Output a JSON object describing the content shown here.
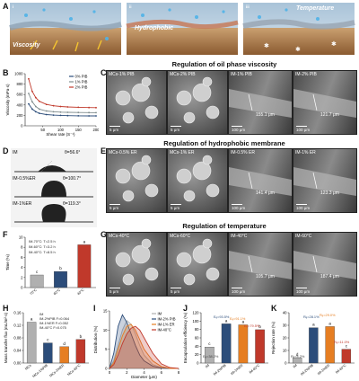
{
  "panel_letters": [
    "A",
    "B",
    "C",
    "D",
    "E",
    "F",
    "G",
    "H",
    "I",
    "J",
    "K"
  ],
  "panel_a": {
    "sub_labels": [
      "i",
      "ii",
      "iii"
    ],
    "callouts": {
      "viscosity": "Viscosity",
      "hydrophobic": "Hydrophobic",
      "temperature": "Temperature"
    }
  },
  "section_titles": {
    "oil": "Regulation of oil phase viscosity",
    "membrane": "Regulation of hydrophobic membrane",
    "temp": "Regulation of temperature"
  },
  "panel_c": {
    "images": [
      {
        "label": "MCs-1% PIB",
        "scale": "5 μm"
      },
      {
        "label": "MCs-2% PIB",
        "scale": "5 μm"
      },
      {
        "label": "IM-1% PIB",
        "scale": "100 μm",
        "measure": "155.1 μm"
      },
      {
        "label": "IM-2% PIB",
        "scale": "100 μm",
        "measure": "121.7 μm"
      }
    ]
  },
  "panel_d": {
    "rows": [
      {
        "label": "IM",
        "angle": "θ=56.6°"
      },
      {
        "label": "IM-0.5%ER",
        "angle": "θ=100.7°"
      },
      {
        "label": "IM-1%ER",
        "angle": "θ=119.3°"
      }
    ]
  },
  "panel_e": {
    "images": [
      {
        "label": "MCs-0.5% ER",
        "scale": "5 μm"
      },
      {
        "label": "MCs-1% ER",
        "scale": "5 μm"
      },
      {
        "label": "IM-0.5% ER",
        "scale": "100 μm",
        "measure": "141.4 μm"
      },
      {
        "label": "IM-1% ER",
        "scale": "100 μm",
        "measure": "123.3 μm"
      }
    ]
  },
  "panel_g": {
    "images": [
      {
        "label": "MCs-40°C",
        "scale": "5 μm"
      },
      {
        "label": "MCs-60°C",
        "scale": "5 μm"
      },
      {
        "label": "IM-40°C",
        "scale": "100 μm",
        "measure": "105.7 μm"
      },
      {
        "label": "IM-60°C",
        "scale": "100 μm",
        "measure": "187.4 μm"
      }
    ]
  },
  "colors": {
    "red": "#c0392b",
    "blue": "#2c4d7a",
    "orange": "#e67e22",
    "gray": "#b0b0b0",
    "salmon": "#f1a08e"
  },
  "chart_data": [
    {
      "id": "B",
      "type": "line",
      "ylabel": "Viscosity (mPa·s)",
      "xlabel": "Shear rate (S⁻¹)",
      "xlim": [
        0,
        200
      ],
      "ylim": [
        0,
        1000
      ],
      "xticks": [
        50,
        100,
        150,
        200
      ],
      "yticks": [
        0,
        200,
        400,
        600,
        800,
        1000
      ],
      "legend_position": "top-right",
      "series": [
        {
          "name": "0% PIB",
          "color": "#2c4d7a",
          "x": [
            10,
            20,
            30,
            40,
            60,
            80,
            100,
            120,
            150,
            180,
            200
          ],
          "y": [
            420,
            320,
            270,
            240,
            215,
            205,
            200,
            195,
            192,
            190,
            190
          ]
        },
        {
          "name": "1% PIB",
          "color": "#7f8c8d",
          "x": [
            10,
            20,
            30,
            40,
            60,
            80,
            100,
            120,
            150,
            180,
            200
          ],
          "y": [
            620,
            460,
            370,
            320,
            285,
            270,
            262,
            258,
            255,
            253,
            252
          ]
        },
        {
          "name": "2% PIB",
          "color": "#c0392b",
          "x": [
            10,
            20,
            30,
            40,
            60,
            80,
            100,
            120,
            150,
            180,
            200
          ],
          "y": [
            900,
            660,
            540,
            470,
            410,
            385,
            370,
            362,
            355,
            350,
            348
          ]
        }
      ]
    },
    {
      "id": "F",
      "type": "bar",
      "ylabel": "Time (%)",
      "categories": [
        "70°C",
        "60°C",
        "40°C"
      ],
      "values": [
        2.5,
        3.2,
        8.5
      ],
      "letters": [
        "c",
        "b",
        "a"
      ],
      "ylim": [
        0,
        10
      ],
      "yticks": [
        0,
        2,
        4,
        6,
        8,
        10
      ],
      "annotations": [
        "IM-70°C: T=2.5 h",
        "IM-60°C: T=3.2 h",
        "IM-40°C: T=8.5 h"
      ],
      "colors": [
        "#b0b0b0",
        "#2c4d7a",
        "#c0392b"
      ]
    },
    {
      "id": "H",
      "type": "bar",
      "ylabel": "Mass transfer flux (mL/m²·s)",
      "categories": [
        "MCs",
        "MCs-1%PIB",
        "MCs-1%ER",
        "MCs-40°C"
      ],
      "values": [
        0.13,
        0.064,
        0.052,
        0.075
      ],
      "letters": [
        "a",
        "c",
        "d",
        "b"
      ],
      "ylim": [
        0,
        0.16
      ],
      "yticks": [
        0,
        0.04,
        0.08,
        0.12,
        0.16
      ],
      "annotations": [
        "IM",
        "IM-2%PIB F=0.064",
        "IM-1%ER F=0.052",
        "IM-40°C F=0.075"
      ],
      "colors": [
        "#b0b0b0",
        "#2c4d7a",
        "#e67e22",
        "#c0392b"
      ]
    },
    {
      "id": "I",
      "type": "area",
      "ylabel": "Distribution (%)",
      "xlabel": "Diameter (μm)",
      "xlim": [
        0,
        8
      ],
      "xticks": [
        0,
        2,
        4,
        6,
        8
      ],
      "ylim": [
        0,
        15
      ],
      "yticks": [
        0,
        5,
        10,
        15
      ],
      "legend_position": "top-right",
      "series": [
        {
          "name": "IM",
          "color": "#b0b0b0",
          "x": [
            0,
            0.5,
            1,
            1.5,
            2,
            2.5,
            3,
            3.5,
            4,
            5,
            6,
            7,
            8
          ],
          "y": [
            0,
            2,
            6,
            10,
            12.5,
            11.5,
            9,
            6,
            3.5,
            1,
            0.2,
            0,
            0
          ]
        },
        {
          "name": "IM-2% PIB",
          "color": "#2c4d7a",
          "x": [
            0,
            0.5,
            1,
            1.5,
            2,
            2.5,
            3,
            3.5,
            4,
            5,
            6,
            7,
            8
          ],
          "y": [
            0,
            4,
            11,
            14,
            12,
            9,
            6,
            3.5,
            2,
            0.6,
            0.1,
            0,
            0
          ]
        },
        {
          "name": "IM-1% ER",
          "color": "#e67e22",
          "x": [
            0,
            0.5,
            1,
            1.5,
            2,
            2.5,
            3,
            3.5,
            4,
            5,
            6,
            7,
            8
          ],
          "y": [
            0,
            1.5,
            5,
            8.5,
            11,
            11.5,
            10,
            7.5,
            5,
            2,
            0.5,
            0,
            0
          ]
        },
        {
          "name": "IM-40°C",
          "color": "#c0392b",
          "x": [
            0,
            0.5,
            1,
            1.5,
            2,
            2.5,
            3,
            3.5,
            4,
            5,
            6,
            7,
            8
          ],
          "y": [
            0,
            1,
            3.5,
            6.5,
            9,
            10.5,
            11,
            10,
            8,
            4,
            1.2,
            0.2,
            0
          ]
        }
      ]
    },
    {
      "id": "J",
      "type": "bar",
      "ylabel": "Encapsulation efficiency (%)",
      "categories": [
        "IM",
        "IM-2%PIB",
        "IM-1%ER",
        "IM-40°C"
      ],
      "values": [
        38.2,
        93.5,
        91.1,
        79.5
      ],
      "letters": [
        "c",
        "a",
        "a",
        "b"
      ],
      "ylim": [
        0,
        120
      ],
      "yticks": [
        0,
        20,
        40,
        60,
        80,
        100,
        120
      ],
      "annotations": [
        "Eₑ=38.2%",
        "Eₑ=93.5%",
        "Eₑ=91.1%",
        "Eₑ=79.5%"
      ],
      "colors": [
        "#b0b0b0",
        "#2c4d7a",
        "#e67e22",
        "#c0392b"
      ]
    },
    {
      "id": "K",
      "type": "bar",
      "ylabel": "Rejection rate (%)",
      "categories": [
        "IM",
        "IM-2%PIB",
        "IM-1%ER",
        "IM-40°C"
      ],
      "values": [
        4.2,
        28.1,
        29.0,
        11.0
      ],
      "letters": [
        "d",
        "a",
        "a",
        "c"
      ],
      "ylim": [
        0,
        40
      ],
      "yticks": [
        0,
        10,
        20,
        30,
        40
      ],
      "annotations": [
        "Rₑ=4.2%",
        "Rₑ=28.1%",
        "Rₑ=29.0%",
        "Rₑ=11.0%"
      ],
      "colors": [
        "#b0b0b0",
        "#2c4d7a",
        "#e67e22",
        "#c0392b"
      ]
    }
  ]
}
